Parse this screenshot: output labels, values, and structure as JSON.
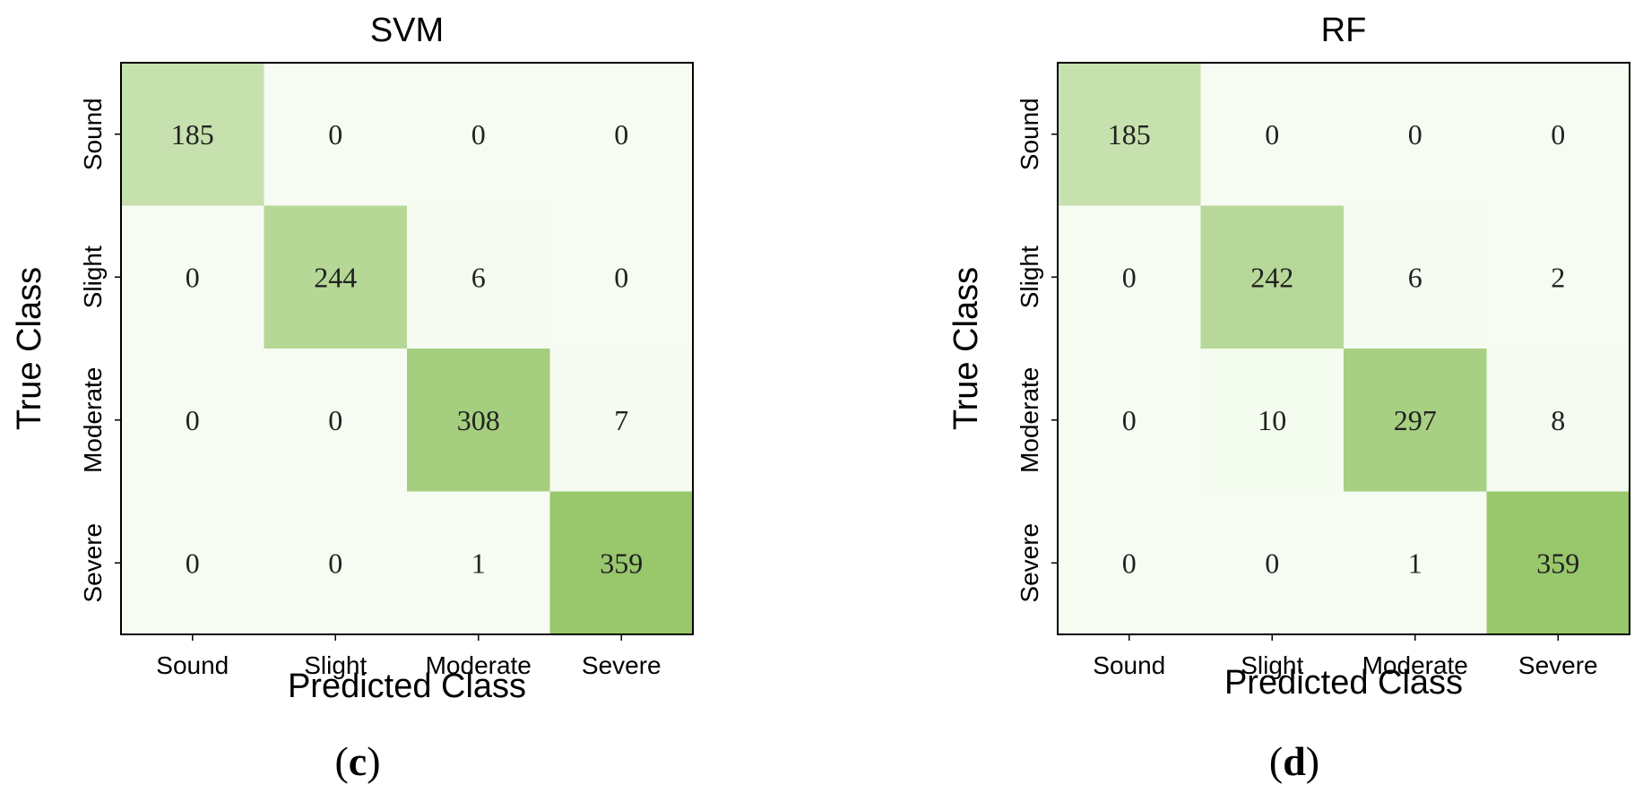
{
  "colors": {
    "scale_low": "#f7fcf3",
    "scale_high": "#98c76c",
    "frame": "#000000"
  },
  "chart_data": [
    {
      "type": "heatmap",
      "title": "SVM",
      "xlabel": "Predicted Class",
      "ylabel": "True Class",
      "x_categories": [
        "Sound",
        "Slight",
        "Moderate",
        "Severe"
      ],
      "y_categories": [
        "Sound",
        "Slight",
        "Moderate",
        "Severe"
      ],
      "matrix": [
        [
          185,
          0,
          0,
          0
        ],
        [
          0,
          244,
          6,
          0
        ],
        [
          0,
          0,
          308,
          7
        ],
        [
          0,
          0,
          1,
          359
        ]
      ],
      "panel_label": "c",
      "grid": false,
      "legend": "none"
    },
    {
      "type": "heatmap",
      "title": "RF",
      "xlabel": "Predicted Class",
      "ylabel": "True Class",
      "x_categories": [
        "Sound",
        "Slight",
        "Moderate",
        "Severe"
      ],
      "y_categories": [
        "Sound",
        "Slight",
        "Moderate",
        "Severe"
      ],
      "matrix": [
        [
          185,
          0,
          0,
          0
        ],
        [
          0,
          242,
          6,
          2
        ],
        [
          0,
          10,
          297,
          8
        ],
        [
          0,
          0,
          1,
          359
        ]
      ],
      "panel_label": "d",
      "grid": false,
      "legend": "none"
    }
  ]
}
